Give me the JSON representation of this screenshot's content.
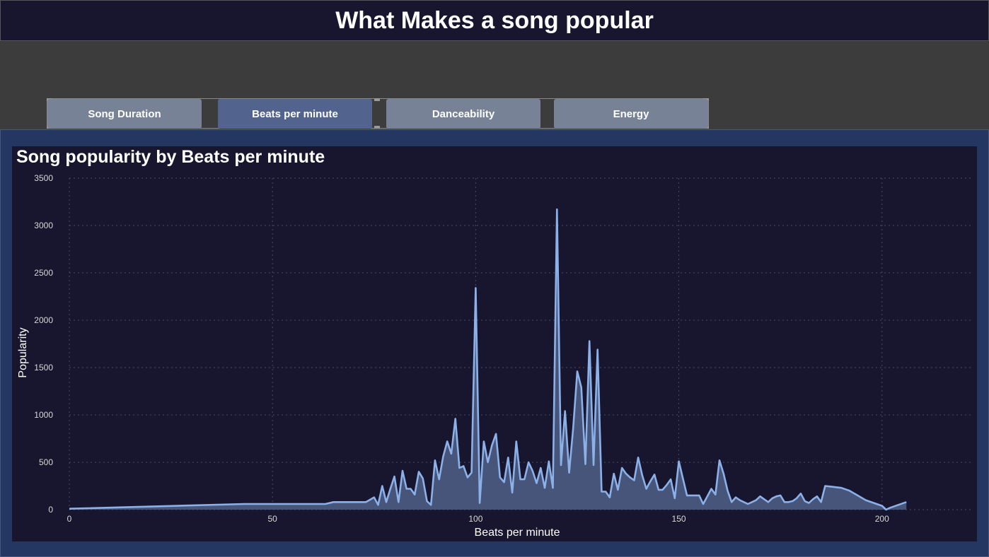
{
  "header": {
    "title": "What Makes a song popular"
  },
  "tabs": [
    {
      "label": "Song Duration",
      "active": false
    },
    {
      "label": "Beats per minute",
      "active": true
    },
    {
      "label": "Danceability",
      "active": false
    },
    {
      "label": "Energy",
      "active": false
    }
  ],
  "colors": {
    "background": "#3c3c3c",
    "header_bg": "#18152e",
    "panel_bg": "#233762",
    "chart_bg": "#18152e",
    "tab": "#778296",
    "tab_active": "#52648e",
    "line": "#8cb0e8",
    "area": "#465579"
  },
  "chart_data": {
    "type": "area",
    "title": "Song popularity by Beats per minute",
    "xlabel": "Beats per minute",
    "ylabel": "Popularity",
    "xlim": [
      0,
      210
    ],
    "ylim": [
      0,
      3500
    ],
    "xticks": [
      0,
      50,
      100,
      150,
      200
    ],
    "yticks": [
      0,
      500,
      1000,
      1500,
      2000,
      2500,
      3000,
      3500
    ],
    "grid": true,
    "x": [
      0,
      43,
      63,
      65,
      70,
      73,
      75,
      76,
      77,
      78,
      79,
      80,
      81,
      82,
      83,
      84,
      85,
      86,
      87,
      88,
      89,
      90,
      91,
      92,
      93,
      94,
      95,
      96,
      97,
      98,
      99,
      100,
      101,
      102,
      103,
      104,
      105,
      106,
      107,
      108,
      109,
      110,
      111,
      112,
      113,
      114,
      115,
      116,
      117,
      118,
      119,
      120,
      121,
      122,
      123,
      124,
      125,
      126,
      127,
      128,
      129,
      130,
      131,
      132,
      133,
      134,
      135,
      136,
      137,
      138,
      139,
      140,
      141,
      142,
      143,
      144,
      145,
      146,
      147,
      148,
      149,
      150,
      151,
      152,
      153,
      154,
      155,
      156,
      157,
      158,
      159,
      160,
      161,
      162,
      163,
      164,
      165,
      166,
      167,
      168,
      169,
      170,
      171,
      172,
      173,
      174,
      175,
      176,
      177,
      178,
      179,
      180,
      181,
      182,
      183,
      184,
      185,
      186,
      188,
      190,
      192,
      194,
      196,
      198,
      200,
      201,
      202,
      204,
      206
    ],
    "y": [
      10,
      60,
      60,
      80,
      80,
      80,
      130,
      50,
      250,
      80,
      220,
      350,
      80,
      410,
      220,
      220,
      160,
      400,
      330,
      90,
      50,
      520,
      320,
      560,
      720,
      590,
      960,
      440,
      460,
      340,
      390,
      2340,
      70,
      720,
      500,
      680,
      800,
      340,
      290,
      550,
      180,
      720,
      320,
      320,
      500,
      410,
      280,
      440,
      230,
      510,
      230,
      3170,
      470,
      1040,
      390,
      860,
      1460,
      1290,
      480,
      1780,
      470,
      1690,
      190,
      190,
      130,
      380,
      210,
      440,
      380,
      340,
      310,
      550,
      360,
      220,
      300,
      370,
      210,
      210,
      260,
      320,
      120,
      510,
      330,
      150,
      150,
      150,
      150,
      60,
      140,
      220,
      160,
      520,
      380,
      200,
      80,
      130,
      100,
      80,
      60,
      80,
      100,
      140,
      110,
      80,
      120,
      140,
      150,
      80,
      80,
      90,
      120,
      170,
      90,
      70,
      110,
      140,
      80,
      250,
      240,
      230,
      200,
      150,
      100,
      70,
      40,
      0,
      20,
      50,
      80
    ]
  }
}
